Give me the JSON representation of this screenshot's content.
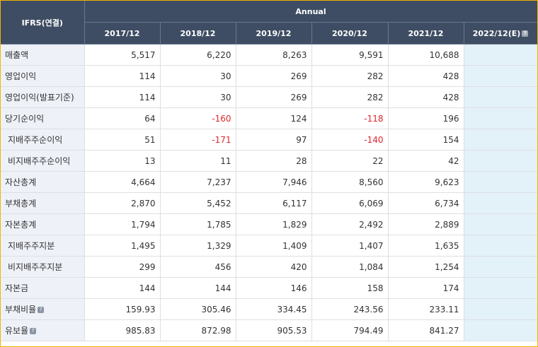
{
  "header": {
    "corner": "IFRS(연결)",
    "annual": "Annual",
    "columns": [
      "2017/12",
      "2018/12",
      "2019/12",
      "2020/12",
      "2021/12",
      "2022/12(E)"
    ]
  },
  "rows": [
    {
      "label": "매출액",
      "sub": false,
      "help": false,
      "values": [
        "5,517",
        "6,220",
        "8,263",
        "9,591",
        "10,688"
      ]
    },
    {
      "label": "영업이익",
      "sub": false,
      "help": false,
      "values": [
        "114",
        "30",
        "269",
        "282",
        "428"
      ]
    },
    {
      "label": "영업이익(발표기준)",
      "sub": false,
      "help": false,
      "values": [
        "114",
        "30",
        "269",
        "282",
        "428"
      ]
    },
    {
      "label": "당기순이익",
      "sub": false,
      "help": false,
      "values": [
        "64",
        "-160",
        "124",
        "-118",
        "196"
      ]
    },
    {
      "label": "지배주주순이익",
      "sub": true,
      "help": false,
      "values": [
        "51",
        "-171",
        "97",
        "-140",
        "154"
      ]
    },
    {
      "label": "비지배주주순이익",
      "sub": true,
      "help": false,
      "values": [
        "13",
        "11",
        "28",
        "22",
        "42"
      ]
    },
    {
      "label": "자산총계",
      "sub": false,
      "help": false,
      "values": [
        "4,664",
        "7,237",
        "7,946",
        "8,560",
        "9,623"
      ]
    },
    {
      "label": "부채총계",
      "sub": false,
      "help": false,
      "values": [
        "2,870",
        "5,452",
        "6,117",
        "6,069",
        "6,734"
      ]
    },
    {
      "label": "자본총계",
      "sub": false,
      "help": false,
      "values": [
        "1,794",
        "1,785",
        "1,829",
        "2,492",
        "2,889"
      ]
    },
    {
      "label": "지배주주지분",
      "sub": true,
      "help": false,
      "values": [
        "1,495",
        "1,329",
        "1,409",
        "1,407",
        "1,635"
      ]
    },
    {
      "label": "비지배주주지분",
      "sub": true,
      "help": false,
      "values": [
        "299",
        "456",
        "420",
        "1,084",
        "1,254"
      ]
    },
    {
      "label": "자본금",
      "sub": false,
      "help": false,
      "values": [
        "144",
        "144",
        "146",
        "158",
        "174"
      ]
    },
    {
      "label": "부채비율",
      "sub": false,
      "help": true,
      "values": [
        "159.93",
        "305.46",
        "334.45",
        "243.56",
        "233.11"
      ]
    },
    {
      "label": "유보율",
      "sub": false,
      "help": true,
      "values": [
        "985.83",
        "872.98",
        "905.53",
        "794.49",
        "841.27"
      ]
    }
  ],
  "colors": {
    "header_bg": "#3e4d63",
    "label_bg": "#eef1f8",
    "estimate_bg": "#e3f1f8",
    "negative": "#e1262b",
    "frame": "#f2b400"
  },
  "icons": {
    "help": "question-mark-icon"
  }
}
